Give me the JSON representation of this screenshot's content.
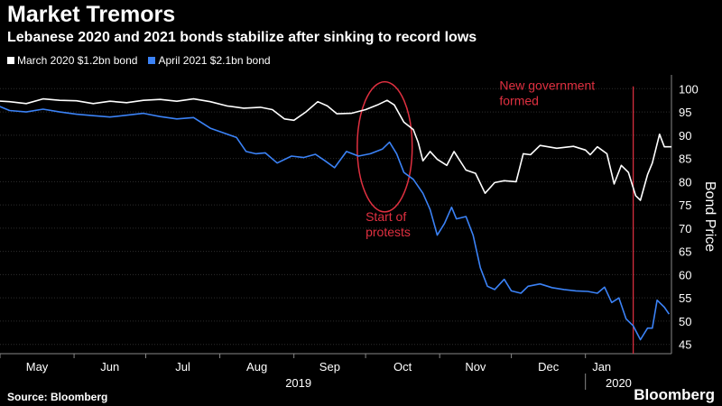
{
  "title": "Market Tremors",
  "subtitle": "Lebanese 2020 and 2021 bonds stabilize after sinking to record lows",
  "source": "Source: Bloomberg",
  "brand": "Bloomberg",
  "chart_data": {
    "type": "line",
    "ylabel": "Bond Price",
    "ylim": [
      43,
      102
    ],
    "y_ticks": [
      45,
      50,
      55,
      60,
      65,
      70,
      75,
      80,
      85,
      90,
      95,
      100
    ],
    "x_range": [
      "2019-05-01",
      "2020-02-06"
    ],
    "x_ticks": [
      {
        "date": "2019-05-01",
        "label": "May"
      },
      {
        "date": "2019-06-01",
        "label": "Jun"
      },
      {
        "date": "2019-07-01",
        "label": "Jul"
      },
      {
        "date": "2019-08-01",
        "label": "Aug"
      },
      {
        "date": "2019-09-01",
        "label": "Sep"
      },
      {
        "date": "2019-10-01",
        "label": "Oct"
      },
      {
        "date": "2019-11-01",
        "label": "Nov"
      },
      {
        "date": "2019-12-01",
        "label": "Dec"
      },
      {
        "date": "2020-01-01",
        "label": "Jan"
      }
    ],
    "year_labels": [
      {
        "label": "2019",
        "date": "2019-09-01"
      },
      {
        "label": "2020",
        "date": "2020-01-13"
      }
    ],
    "year_divider": "2020-01-01",
    "grid": true,
    "legend_position": "top-left",
    "series": [
      {
        "name": "March 2020 $1.2bn bond",
        "color": "#ffffff",
        "points": [
          [
            "2019-04-26",
            97.5
          ],
          [
            "2019-05-05",
            97.2
          ],
          [
            "2019-05-12",
            96.8
          ],
          [
            "2019-05-19",
            97.8
          ],
          [
            "2019-05-26",
            97.5
          ],
          [
            "2019-06-02",
            97.4
          ],
          [
            "2019-06-09",
            96.8
          ],
          [
            "2019-06-16",
            97.3
          ],
          [
            "2019-06-23",
            97.0
          ],
          [
            "2019-06-30",
            97.5
          ],
          [
            "2019-07-07",
            97.7
          ],
          [
            "2019-07-14",
            97.3
          ],
          [
            "2019-07-21",
            97.8
          ],
          [
            "2019-07-28",
            97.2
          ],
          [
            "2019-08-04",
            96.3
          ],
          [
            "2019-08-11",
            95.8
          ],
          [
            "2019-08-18",
            96.0
          ],
          [
            "2019-08-23",
            95.5
          ],
          [
            "2019-08-28",
            93.5
          ],
          [
            "2019-09-01",
            93.2
          ],
          [
            "2019-09-06",
            95.0
          ],
          [
            "2019-09-11",
            97.2
          ],
          [
            "2019-09-15",
            96.3
          ],
          [
            "2019-09-19",
            94.6
          ],
          [
            "2019-09-25",
            94.7
          ],
          [
            "2019-10-01",
            95.5
          ],
          [
            "2019-10-06",
            96.5
          ],
          [
            "2019-10-10",
            97.5
          ],
          [
            "2019-10-13",
            96.5
          ],
          [
            "2019-10-17",
            92.8
          ],
          [
            "2019-10-21",
            91.2
          ],
          [
            "2019-10-23",
            88.5
          ],
          [
            "2019-10-25",
            84.5
          ],
          [
            "2019-10-28",
            86.5
          ],
          [
            "2019-10-31",
            84.8
          ],
          [
            "2019-11-04",
            83.5
          ],
          [
            "2019-11-07",
            86.5
          ],
          [
            "2019-11-12",
            82.5
          ],
          [
            "2019-11-16",
            81.8
          ],
          [
            "2019-11-20",
            77.5
          ],
          [
            "2019-11-24",
            79.8
          ],
          [
            "2019-11-28",
            80.2
          ],
          [
            "2019-12-03",
            80.0
          ],
          [
            "2019-12-06",
            86.0
          ],
          [
            "2019-12-09",
            85.8
          ],
          [
            "2019-12-13",
            87.8
          ],
          [
            "2019-12-20",
            87.2
          ],
          [
            "2019-12-27",
            87.6
          ],
          [
            "2020-01-01",
            86.8
          ],
          [
            "2020-01-03",
            85.8
          ],
          [
            "2020-01-06",
            87.5
          ],
          [
            "2020-01-10",
            86.0
          ],
          [
            "2020-01-13",
            79.5
          ],
          [
            "2020-01-16",
            83.5
          ],
          [
            "2020-01-19",
            82.0
          ],
          [
            "2020-01-22",
            77.0
          ],
          [
            "2020-01-24",
            76.0
          ],
          [
            "2020-01-27",
            81.5
          ],
          [
            "2020-01-29",
            84.0
          ],
          [
            "2020-02-01",
            90.2
          ],
          [
            "2020-02-03",
            87.5
          ],
          [
            "2020-02-06",
            87.5
          ]
        ]
      },
      {
        "name": "April 2021 $2.1bn bond",
        "color": "#3b82f6",
        "points": [
          [
            "2019-04-26",
            97.2
          ],
          [
            "2019-05-05",
            95.3
          ],
          [
            "2019-05-12",
            95.0
          ],
          [
            "2019-05-19",
            95.6
          ],
          [
            "2019-05-26",
            95.0
          ],
          [
            "2019-06-02",
            94.5
          ],
          [
            "2019-06-09",
            94.2
          ],
          [
            "2019-06-16",
            93.9
          ],
          [
            "2019-06-23",
            94.3
          ],
          [
            "2019-06-30",
            94.7
          ],
          [
            "2019-07-07",
            94.0
          ],
          [
            "2019-07-14",
            93.5
          ],
          [
            "2019-07-21",
            93.8
          ],
          [
            "2019-07-28",
            91.5
          ],
          [
            "2019-08-02",
            90.6
          ],
          [
            "2019-08-08",
            89.5
          ],
          [
            "2019-08-12",
            86.5
          ],
          [
            "2019-08-16",
            86.0
          ],
          [
            "2019-08-20",
            86.2
          ],
          [
            "2019-08-25",
            84.0
          ],
          [
            "2019-08-31",
            85.5
          ],
          [
            "2019-09-05",
            85.2
          ],
          [
            "2019-09-10",
            85.9
          ],
          [
            "2019-09-14",
            84.5
          ],
          [
            "2019-09-18",
            83.0
          ],
          [
            "2019-09-23",
            86.5
          ],
          [
            "2019-09-28",
            85.5
          ],
          [
            "2019-10-03",
            86.0
          ],
          [
            "2019-10-08",
            87.0
          ],
          [
            "2019-10-11",
            88.5
          ],
          [
            "2019-10-14",
            86.0
          ],
          [
            "2019-10-17",
            82.0
          ],
          [
            "2019-10-21",
            80.5
          ],
          [
            "2019-10-25",
            77.5
          ],
          [
            "2019-10-28",
            74.0
          ],
          [
            "2019-10-31",
            68.5
          ],
          [
            "2019-11-03",
            71.0
          ],
          [
            "2019-11-06",
            74.5
          ],
          [
            "2019-11-08",
            72.0
          ],
          [
            "2019-11-12",
            72.5
          ],
          [
            "2019-11-15",
            68.5
          ],
          [
            "2019-11-18",
            61.5
          ],
          [
            "2019-11-21",
            57.5
          ],
          [
            "2019-11-24",
            56.8
          ],
          [
            "2019-11-28",
            59.0
          ],
          [
            "2019-12-01",
            56.5
          ],
          [
            "2019-12-05",
            56.0
          ],
          [
            "2019-12-08",
            57.5
          ],
          [
            "2019-12-13",
            58.0
          ],
          [
            "2019-12-18",
            57.2
          ],
          [
            "2019-12-23",
            56.8
          ],
          [
            "2019-12-28",
            56.5
          ],
          [
            "2020-01-02",
            56.4
          ],
          [
            "2020-01-06",
            56.0
          ],
          [
            "2020-01-09",
            57.3
          ],
          [
            "2020-01-12",
            54.0
          ],
          [
            "2020-01-15",
            55.0
          ],
          [
            "2020-01-18",
            50.5
          ],
          [
            "2020-01-21",
            49.0
          ],
          [
            "2020-01-24",
            46.0
          ],
          [
            "2020-01-27",
            48.5
          ],
          [
            "2020-01-29",
            48.5
          ],
          [
            "2020-01-31",
            54.5
          ],
          [
            "2020-02-03",
            53.0
          ],
          [
            "2020-02-05",
            51.5
          ]
        ]
      }
    ],
    "annotations": [
      {
        "type": "ellipse",
        "color": "#e03040",
        "center": [
          "2019-10-09",
          87.5
        ],
        "rx_days": 11.5,
        "ry_units": 14
      },
      {
        "type": "text",
        "color": "#e03040",
        "lines": [
          "Start of",
          "protests"
        ],
        "anchor": [
          "2019-10-01",
          71.5
        ]
      },
      {
        "type": "vline",
        "color": "#e03040",
        "date": "2020-01-21",
        "from": 43,
        "to": 100.5
      },
      {
        "type": "text",
        "color": "#e03040",
        "lines": [
          "New government",
          "formed"
        ],
        "anchor": [
          "2019-11-26",
          99.8
        ]
      }
    ]
  }
}
